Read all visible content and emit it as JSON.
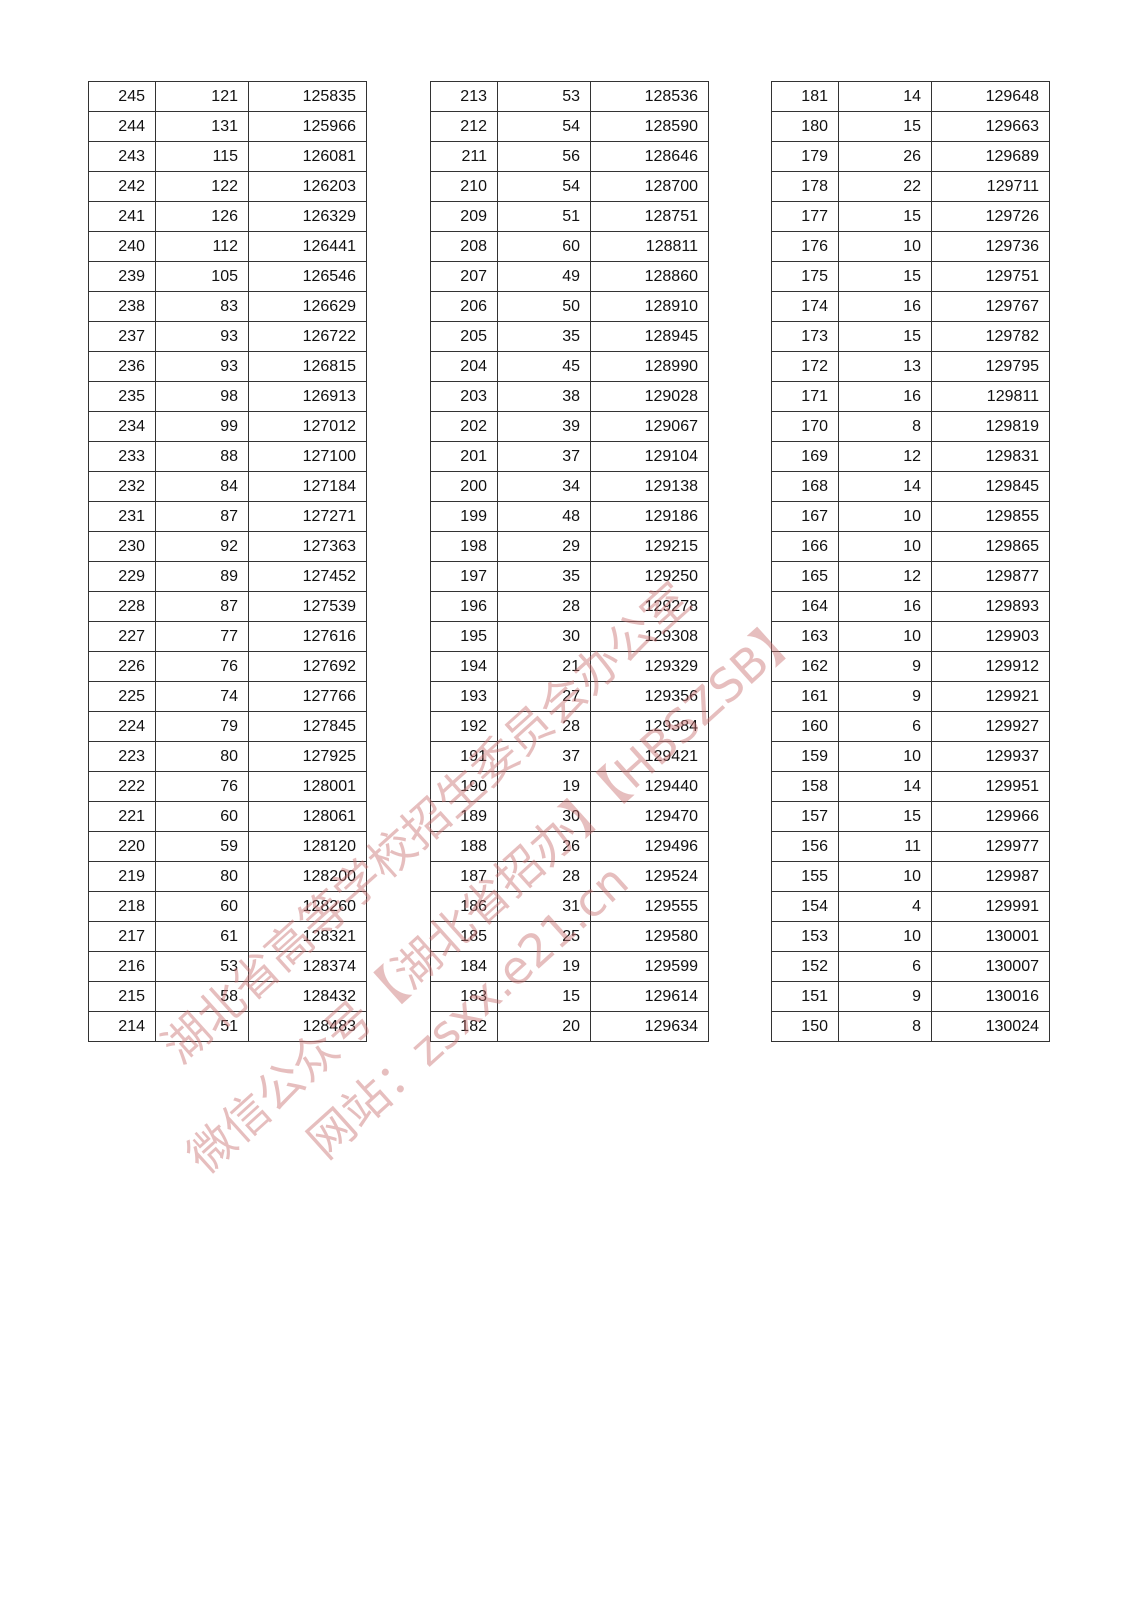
{
  "tables": [
    {
      "rows": [
        [
          "245",
          "121",
          "125835"
        ],
        [
          "244",
          "131",
          "125966"
        ],
        [
          "243",
          "115",
          "126081"
        ],
        [
          "242",
          "122",
          "126203"
        ],
        [
          "241",
          "126",
          "126329"
        ],
        [
          "240",
          "112",
          "126441"
        ],
        [
          "239",
          "105",
          "126546"
        ],
        [
          "238",
          "83",
          "126629"
        ],
        [
          "237",
          "93",
          "126722"
        ],
        [
          "236",
          "93",
          "126815"
        ],
        [
          "235",
          "98",
          "126913"
        ],
        [
          "234",
          "99",
          "127012"
        ],
        [
          "233",
          "88",
          "127100"
        ],
        [
          "232",
          "84",
          "127184"
        ],
        [
          "231",
          "87",
          "127271"
        ],
        [
          "230",
          "92",
          "127363"
        ],
        [
          "229",
          "89",
          "127452"
        ],
        [
          "228",
          "87",
          "127539"
        ],
        [
          "227",
          "77",
          "127616"
        ],
        [
          "226",
          "76",
          "127692"
        ],
        [
          "225",
          "74",
          "127766"
        ],
        [
          "224",
          "79",
          "127845"
        ],
        [
          "223",
          "80",
          "127925"
        ],
        [
          "222",
          "76",
          "128001"
        ],
        [
          "221",
          "60",
          "128061"
        ],
        [
          "220",
          "59",
          "128120"
        ],
        [
          "219",
          "80",
          "128200"
        ],
        [
          "218",
          "60",
          "128260"
        ],
        [
          "217",
          "61",
          "128321"
        ],
        [
          "216",
          "53",
          "128374"
        ],
        [
          "215",
          "58",
          "128432"
        ],
        [
          "214",
          "51",
          "128483"
        ]
      ]
    },
    {
      "rows": [
        [
          "213",
          "53",
          "128536"
        ],
        [
          "212",
          "54",
          "128590"
        ],
        [
          "211",
          "56",
          "128646"
        ],
        [
          "210",
          "54",
          "128700"
        ],
        [
          "209",
          "51",
          "128751"
        ],
        [
          "208",
          "60",
          "128811"
        ],
        [
          "207",
          "49",
          "128860"
        ],
        [
          "206",
          "50",
          "128910"
        ],
        [
          "205",
          "35",
          "128945"
        ],
        [
          "204",
          "45",
          "128990"
        ],
        [
          "203",
          "38",
          "129028"
        ],
        [
          "202",
          "39",
          "129067"
        ],
        [
          "201",
          "37",
          "129104"
        ],
        [
          "200",
          "34",
          "129138"
        ],
        [
          "199",
          "48",
          "129186"
        ],
        [
          "198",
          "29",
          "129215"
        ],
        [
          "197",
          "35",
          "129250"
        ],
        [
          "196",
          "28",
          "129278"
        ],
        [
          "195",
          "30",
          "129308"
        ],
        [
          "194",
          "21",
          "129329"
        ],
        [
          "193",
          "27",
          "129356"
        ],
        [
          "192",
          "28",
          "129384"
        ],
        [
          "191",
          "37",
          "129421"
        ],
        [
          "190",
          "19",
          "129440"
        ],
        [
          "189",
          "30",
          "129470"
        ],
        [
          "188",
          "26",
          "129496"
        ],
        [
          "187",
          "28",
          "129524"
        ],
        [
          "186",
          "31",
          "129555"
        ],
        [
          "185",
          "25",
          "129580"
        ],
        [
          "184",
          "19",
          "129599"
        ],
        [
          "183",
          "15",
          "129614"
        ],
        [
          "182",
          "20",
          "129634"
        ]
      ]
    },
    {
      "rows": [
        [
          "181",
          "14",
          "129648"
        ],
        [
          "180",
          "15",
          "129663"
        ],
        [
          "179",
          "26",
          "129689"
        ],
        [
          "178",
          "22",
          "129711"
        ],
        [
          "177",
          "15",
          "129726"
        ],
        [
          "176",
          "10",
          "129736"
        ],
        [
          "175",
          "15",
          "129751"
        ],
        [
          "174",
          "16",
          "129767"
        ],
        [
          "173",
          "15",
          "129782"
        ],
        [
          "172",
          "13",
          "129795"
        ],
        [
          "171",
          "16",
          "129811"
        ],
        [
          "170",
          "8",
          "129819"
        ],
        [
          "169",
          "12",
          "129831"
        ],
        [
          "168",
          "14",
          "129845"
        ],
        [
          "167",
          "10",
          "129855"
        ],
        [
          "166",
          "10",
          "129865"
        ],
        [
          "165",
          "12",
          "129877"
        ],
        [
          "164",
          "16",
          "129893"
        ],
        [
          "163",
          "10",
          "129903"
        ],
        [
          "162",
          "9",
          "129912"
        ],
        [
          "161",
          "9",
          "129921"
        ],
        [
          "160",
          "6",
          "129927"
        ],
        [
          "159",
          "10",
          "129937"
        ],
        [
          "158",
          "14",
          "129951"
        ],
        [
          "157",
          "15",
          "129966"
        ],
        [
          "156",
          "11",
          "129977"
        ],
        [
          "155",
          "10",
          "129987"
        ],
        [
          "154",
          "4",
          "129991"
        ],
        [
          "153",
          "10",
          "130001"
        ],
        [
          "152",
          "6",
          "130007"
        ],
        [
          "151",
          "9",
          "130016"
        ],
        [
          "150",
          "8",
          "130024"
        ]
      ]
    }
  ],
  "watermark": {
    "line1": "湖北省高等学校招生委员会办公室",
    "line2": "微信公众号【湖北省招办】【HBSZSB】",
    "line3": "网站：zsxx.e21.cn",
    "color": "#c86e6e"
  }
}
